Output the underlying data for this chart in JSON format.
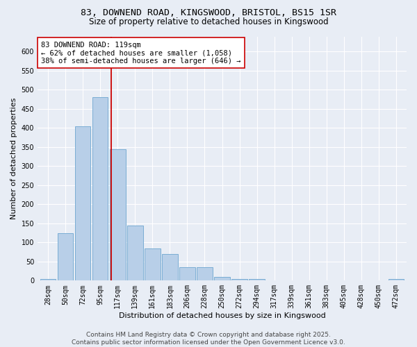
{
  "title_line1": "83, DOWNEND ROAD, KINGSWOOD, BRISTOL, BS15 1SR",
  "title_line2": "Size of property relative to detached houses in Kingswood",
  "xlabel": "Distribution of detached houses by size in Kingswood",
  "ylabel": "Number of detached properties",
  "bar_color": "#b8cfe8",
  "bar_edge_color": "#7aadd4",
  "background_color": "#e8edf5",
  "grid_color": "#ffffff",
  "categories": [
    "28sqm",
    "50sqm",
    "72sqm",
    "95sqm",
    "117sqm",
    "139sqm",
    "161sqm",
    "183sqm",
    "206sqm",
    "228sqm",
    "250sqm",
    "272sqm",
    "294sqm",
    "317sqm",
    "339sqm",
    "361sqm",
    "383sqm",
    "405sqm",
    "428sqm",
    "450sqm",
    "472sqm"
  ],
  "values": [
    5,
    125,
    405,
    480,
    345,
    145,
    85,
    70,
    35,
    35,
    10,
    5,
    5,
    0,
    0,
    0,
    0,
    0,
    0,
    0,
    5
  ],
  "ylim": [
    0,
    640
  ],
  "yticks": [
    0,
    50,
    100,
    150,
    200,
    250,
    300,
    350,
    400,
    450,
    500,
    550,
    600
  ],
  "vline_x_index": 4,
  "vline_color": "#cc0000",
  "annotation_text": "83 DOWNEND ROAD: 119sqm\n← 62% of detached houses are smaller (1,058)\n38% of semi-detached houses are larger (646) →",
  "annotation_box_color": "#ffffff",
  "annotation_box_edge": "#cc0000",
  "footer_text": "Contains HM Land Registry data © Crown copyright and database right 2025.\nContains public sector information licensed under the Open Government Licence v3.0.",
  "title_fontsize": 9.5,
  "subtitle_fontsize": 8.5,
  "axis_label_fontsize": 8,
  "tick_fontsize": 7,
  "annotation_fontsize": 7.5,
  "footer_fontsize": 6.5
}
